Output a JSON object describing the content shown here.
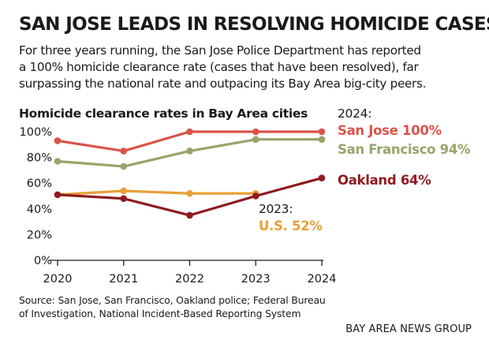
{
  "headline": "SAN JOSE LEADS IN RESOLVING HOMICIDE CASES",
  "dek": [
    "For three years running, the San Jose Police Department has reported",
    "a 100% homicide clearance rate (cases that have been resolved), far",
    "surpassing the national rate and outpacing its Bay Area big-city peers."
  ],
  "source_lines": [
    "Source: San Jose, San Francisco, Oakland police; Federal Bureau",
    "of Investigation, National Incident-Based Reporting System"
  ],
  "credit": "BAY AREA NEWS GROUP",
  "chart_data": {
    "type": "line",
    "title": "Homicide clearance rates in Bay Area cities",
    "xlabel": "",
    "ylabel": "",
    "categories": [
      "2020",
      "2021",
      "2022",
      "2023",
      "2024"
    ],
    "y_ticks": [
      "0%",
      "20%",
      "40%",
      "60%",
      "80%",
      "100%"
    ],
    "ylim": [
      0,
      100
    ],
    "grid": false,
    "series": [
      {
        "name": "San Jose",
        "color": "#d9544a",
        "values": [
          93,
          85,
          100,
          100,
          100
        ]
      },
      {
        "name": "San Francisco",
        "color": "#96a56b",
        "values": [
          77,
          73,
          85,
          94,
          94
        ]
      },
      {
        "name": "U.S.",
        "color": "#e8a03a",
        "values": [
          51,
          54,
          52,
          52,
          null
        ]
      },
      {
        "name": "Oakland",
        "color": "#8e1b1f",
        "values": [
          51,
          48,
          35,
          50,
          64
        ]
      }
    ],
    "annotations": [
      {
        "id": "year2024",
        "text": "2024:",
        "color": "#1a1a1a"
      },
      {
        "id": "sj",
        "text": "San Jose 100%",
        "color": "#d9544a"
      },
      {
        "id": "sf",
        "text": "San Francisco 94%",
        "color": "#96a56b"
      },
      {
        "id": "oak",
        "text": "Oakland 64%",
        "color": "#8e1b1f"
      },
      {
        "id": "year2023",
        "text": "2023:",
        "color": "#1a1a1a"
      },
      {
        "id": "us",
        "text": "U.S. 52%",
        "color": "#e8a03a"
      }
    ]
  }
}
